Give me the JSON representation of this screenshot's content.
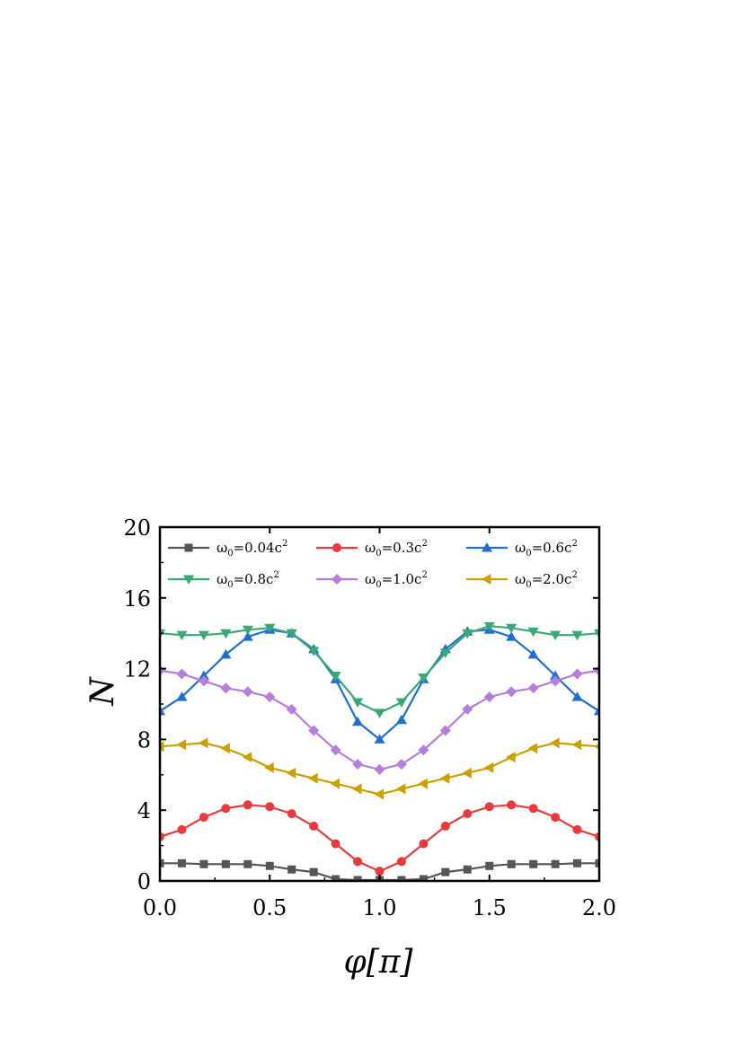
{
  "chart_data": {
    "type": "line",
    "xlabel": "φ[π]",
    "ylabel": "N",
    "xlim": [
      0,
      2
    ],
    "ylim": [
      0,
      20
    ],
    "xticks": [
      "0.0",
      "0.5",
      "1.0",
      "1.5",
      "2.0"
    ],
    "xtick_values": [
      0,
      0.5,
      1.0,
      1.5,
      2.0
    ],
    "yticks": [
      "0",
      "4",
      "8",
      "12",
      "16",
      "20"
    ],
    "ytick_values": [
      0,
      4,
      8,
      12,
      16,
      20
    ],
    "grid": false,
    "legend_position": "top",
    "x": [
      0,
      0.1,
      0.2,
      0.3,
      0.4,
      0.5,
      0.6,
      0.7,
      0.8,
      0.9,
      1.0,
      1.1,
      1.2,
      1.3,
      1.4,
      1.5,
      1.6,
      1.7,
      1.8,
      1.9,
      2.0
    ],
    "series": [
      {
        "name": "ω₀=0.04c²",
        "label_main": "ω",
        "label_sub": "0",
        "label_rest": "=0.04c",
        "label_sup": "2",
        "color": "#555555",
        "marker": "square",
        "values": [
          1.0,
          1.0,
          0.95,
          0.95,
          0.95,
          0.85,
          0.65,
          0.5,
          0.1,
          0.05,
          0.05,
          0.05,
          0.1,
          0.5,
          0.65,
          0.85,
          0.95,
          0.95,
          0.95,
          1.0,
          1.0
        ]
      },
      {
        "name": "ω₀=0.3c²",
        "label_main": "ω",
        "label_sub": "0",
        "label_rest": "=0.3c",
        "label_sup": "2",
        "color": "#e8393c",
        "marker": "circle",
        "values": [
          2.5,
          2.9,
          3.6,
          4.1,
          4.3,
          4.2,
          3.8,
          3.1,
          2.1,
          1.1,
          0.55,
          1.1,
          2.1,
          3.1,
          3.8,
          4.2,
          4.3,
          4.1,
          3.6,
          2.9,
          2.5
        ]
      },
      {
        "name": "ω₀=0.6c²",
        "label_main": "ω",
        "label_sub": "0",
        "label_rest": "=0.6c",
        "label_sup": "2",
        "color": "#1f6fcf",
        "marker": "triangle-up",
        "values": [
          9.6,
          10.4,
          11.6,
          12.8,
          13.8,
          14.2,
          14.0,
          13.1,
          11.4,
          9.0,
          8.0,
          9.1,
          11.4,
          13.1,
          14.1,
          14.2,
          13.8,
          12.8,
          11.6,
          10.4,
          9.6
        ]
      },
      {
        "name": "ω₀=0.8c²",
        "label_main": "ω",
        "label_sub": "0",
        "label_rest": "=0.8c",
        "label_sup": "2",
        "color": "#3aa876",
        "marker": "triangle-down",
        "values": [
          14.0,
          13.9,
          13.9,
          14.0,
          14.2,
          14.3,
          14.0,
          13.0,
          11.6,
          10.1,
          9.5,
          10.1,
          11.5,
          12.9,
          14.0,
          14.4,
          14.3,
          14.1,
          13.9,
          13.9,
          14.0
        ]
      },
      {
        "name": "ω₀=1.0c²",
        "label_main": "ω",
        "label_sub": "0",
        "label_rest": "=1.0c",
        "label_sup": "2",
        "color": "#b57edc",
        "marker": "diamond",
        "values": [
          11.9,
          11.7,
          11.3,
          10.9,
          10.7,
          10.4,
          9.7,
          8.5,
          7.4,
          6.6,
          6.3,
          6.6,
          7.4,
          8.5,
          9.7,
          10.4,
          10.7,
          10.9,
          11.3,
          11.7,
          11.9
        ]
      },
      {
        "name": "ω₀=2.0c²",
        "label_main": "ω",
        "label_sub": "0",
        "label_rest": "=2.0c",
        "label_sup": "2",
        "color": "#c9a000",
        "marker": "triangle-left",
        "values": [
          7.6,
          7.7,
          7.8,
          7.5,
          7.0,
          6.4,
          6.1,
          5.8,
          5.5,
          5.2,
          4.9,
          5.2,
          5.5,
          5.8,
          6.1,
          6.4,
          7.0,
          7.5,
          7.8,
          7.7,
          7.6
        ]
      }
    ]
  }
}
